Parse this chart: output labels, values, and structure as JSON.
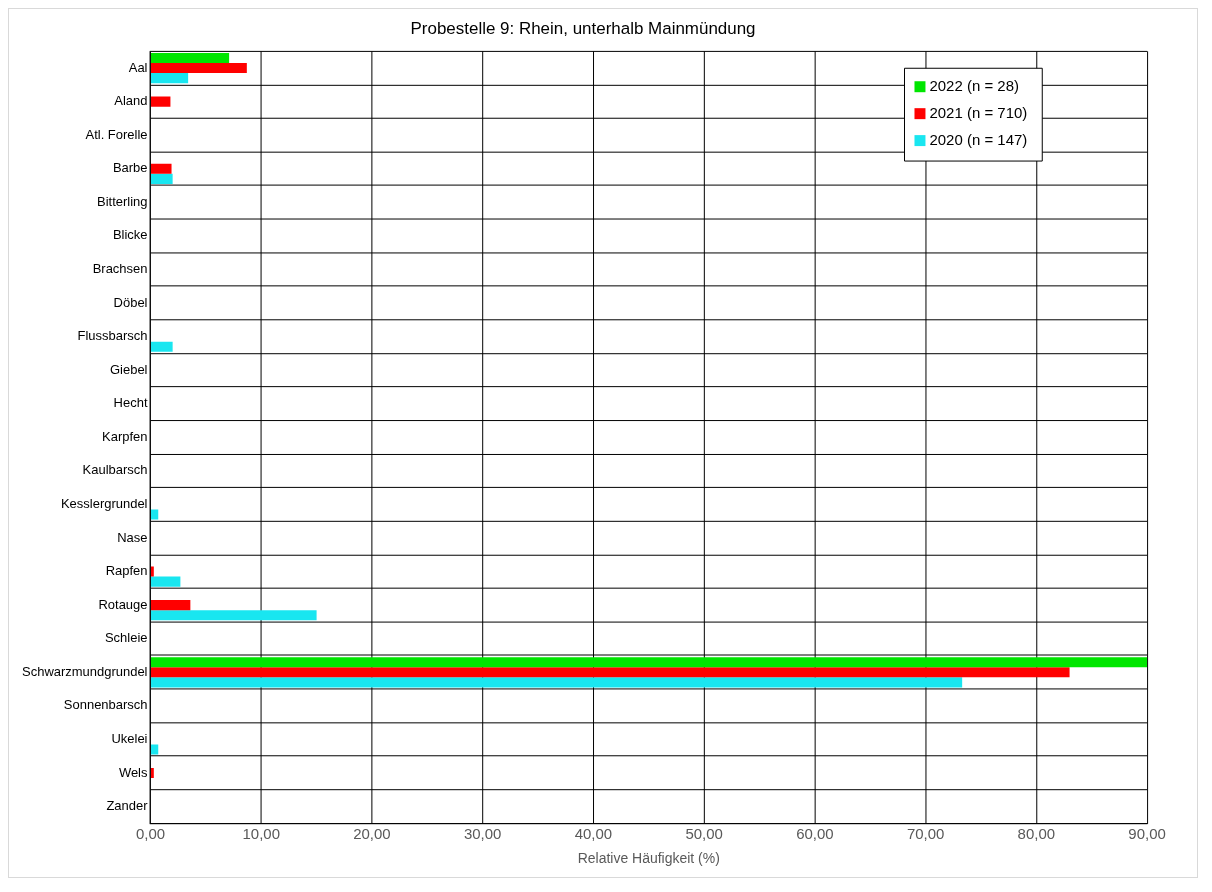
{
  "chart_data": {
    "type": "bar",
    "orientation": "horizontal",
    "title": "Probestelle 9: Rhein, unterhalb Mainmündung",
    "xlabel": "Relative Häufigkeit (%)",
    "categories": [
      "Aal",
      "Aland",
      "Atl. Forelle",
      "Barbe",
      "Bitterling",
      "Blicke",
      "Brachsen",
      "Döbel",
      "Flussbarsch",
      "Giebel",
      "Hecht",
      "Karpfen",
      "Kaulbarsch",
      "Kesslergrundel",
      "Nase",
      "Rapfen",
      "Rotauge",
      "Schleie",
      "Schwarzmundgrundel",
      "Sonnenbarsch",
      "Ukelei",
      "Wels",
      "Zander"
    ],
    "series": [
      {
        "name": "2022 (n = 28)",
        "color": "#00e600",
        "values": [
          7.1,
          0,
          0,
          0,
          0,
          0,
          0,
          0,
          0,
          0,
          0,
          0,
          0,
          0,
          0,
          0,
          0,
          0,
          90,
          0,
          0,
          0,
          0
        ]
      },
      {
        "name": "2021 (n = 710)",
        "color": "#ff0000",
        "values": [
          8.7,
          1.8,
          0,
          1.9,
          0,
          0,
          0,
          0,
          0,
          0,
          0,
          0,
          0,
          0,
          0,
          0.3,
          3.6,
          0,
          83,
          0,
          0,
          0.3,
          0
        ]
      },
      {
        "name": "2020 (n = 147)",
        "color": "#19e6f0",
        "values": [
          3.4,
          0,
          0,
          2,
          0,
          0,
          0,
          0,
          2,
          0,
          0,
          0,
          0,
          0.7,
          0,
          2.7,
          15,
          0,
          73.3,
          0,
          0.7,
          0,
          0
        ]
      }
    ],
    "xlim": [
      0,
      90
    ],
    "xticks": [
      {
        "value": 0,
        "label": "0,00"
      },
      {
        "value": 10,
        "label": "10,00"
      },
      {
        "value": 20,
        "label": "20,00"
      },
      {
        "value": 30,
        "label": "30,00"
      },
      {
        "value": 40,
        "label": "40,00"
      },
      {
        "value": 50,
        "label": "50,00"
      },
      {
        "value": 60,
        "label": "60,00"
      },
      {
        "value": 70,
        "label": "70,00"
      },
      {
        "value": 80,
        "label": "80,00"
      },
      {
        "value": 90,
        "label": "90,00"
      }
    ],
    "grid": true,
    "legend": "top right"
  }
}
